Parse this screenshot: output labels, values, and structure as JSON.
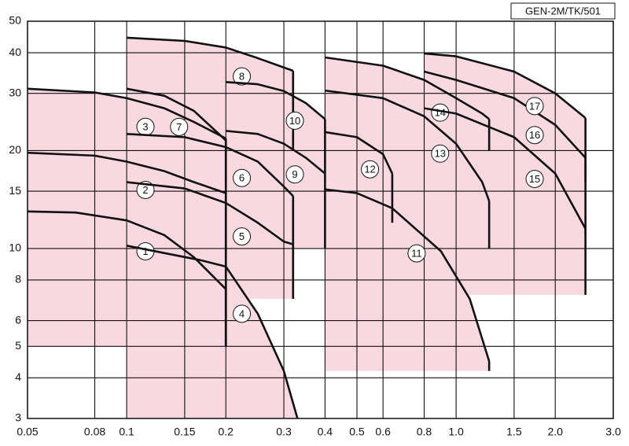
{
  "chart_data": {
    "type": "zones",
    "code": "GEN-2M/TK/501",
    "xlog": true,
    "ylog": true,
    "grid": true,
    "color": "#f8d9e1",
    "xlim": [
      0.05,
      3.0
    ],
    "ylim": [
      3,
      50
    ],
    "xticks": [
      0.05,
      0.08,
      0.1,
      0.15,
      0.2,
      0.3,
      0.4,
      0.5,
      0.6,
      0.8,
      {
        "value": 1.0,
        "label": "1.0"
      },
      1.5,
      {
        "value": 2.0,
        "label": "2.0"
      },
      {
        "value": 3.0,
        "label": "3.0"
      }
    ],
    "yticks": [
      3,
      4,
      5,
      6,
      8,
      10,
      15,
      20,
      30,
      40,
      50
    ],
    "series": [
      {
        "name": "1",
        "x": [
          0.05,
          0.07,
          0.1,
          0.13,
          0.16,
          0.2
        ],
        "values": [
          13,
          12.9,
          12.2,
          11,
          9.4,
          7.5
        ],
        "bottom": 5
      },
      {
        "name": "2",
        "x": [
          0.05,
          0.08,
          0.1,
          0.13,
          0.16,
          0.2
        ],
        "values": [
          19.7,
          19.3,
          18.5,
          17.3,
          16,
          14.8
        ],
        "bottom": 5
      },
      {
        "name": "3",
        "x": [
          0.05,
          0.08,
          0.1,
          0.13,
          0.16,
          0.2
        ],
        "values": [
          31,
          30.2,
          29,
          27,
          24.5,
          21.8
        ],
        "bottom": 5
      },
      {
        "name": "4",
        "x": [
          0.1,
          0.168,
          0.2,
          0.25,
          0.3,
          0.33
        ],
        "values": [
          10.2,
          9.2,
          8.8,
          6.3,
          4.2,
          3
        ],
        "bottom": 3
      },
      {
        "name": "5",
        "x": [
          0.1,
          0.15,
          0.2,
          0.25,
          0.3,
          0.32
        ],
        "values": [
          16,
          15.3,
          13.8,
          12,
          10.5,
          10.3
        ],
        "bottom": 7
      },
      {
        "name": "6",
        "x": [
          0.1,
          0.15,
          0.2,
          0.25,
          0.3,
          0.32
        ],
        "values": [
          22.5,
          22,
          20.5,
          18.5,
          15.5,
          14.5
        ],
        "bottom": 10
      },
      {
        "name": "7",
        "x": [
          0.1,
          0.13,
          0.16,
          0.2
        ],
        "values": [
          31,
          29.5,
          26.5,
          21.5
        ],
        "bottom": 16
      },
      {
        "name": "8",
        "x": [
          0.1,
          0.15,
          0.2,
          0.25,
          0.32
        ],
        "values": [
          44.5,
          43.5,
          41.5,
          38.5,
          35.2
        ],
        "bottom": 20
      },
      {
        "name": "9",
        "x": [
          0.2,
          0.25,
          0.3,
          0.35,
          0.4
        ],
        "values": [
          23,
          22.5,
          21,
          19,
          17
        ],
        "bottom": 10
      },
      {
        "name": "10",
        "x": [
          0.2,
          0.25,
          0.3,
          0.35,
          0.4
        ],
        "values": [
          32.5,
          32,
          30.5,
          28,
          25
        ],
        "bottom": 17
      },
      {
        "name": "11",
        "x": [
          0.4,
          0.5,
          0.64,
          0.9,
          1.1,
          1.26
        ],
        "values": [
          15.2,
          14.8,
          13.3,
          9.8,
          7,
          4.5
        ],
        "bottom": 4.2
      },
      {
        "name": "12",
        "x": [
          0.4,
          0.5,
          0.6,
          0.64
        ],
        "values": [
          22.8,
          22,
          19.5,
          17
        ],
        "bottom": 12
      },
      {
        "name": "13",
        "x": [
          0.4,
          0.6,
          0.8,
          1.0,
          1.2,
          1.26
        ],
        "values": [
          30.6,
          29,
          25.5,
          21,
          16,
          14
        ],
        "bottom": 10
      },
      {
        "name": "14",
        "x": [
          0.4,
          0.6,
          0.8,
          1.0,
          1.2,
          1.26
        ],
        "values": [
          38.7,
          36.5,
          33,
          29,
          26,
          25
        ],
        "bottom": 20
      },
      {
        "name": "15",
        "x": [
          0.8,
          1.0,
          1.5,
          2.0,
          2.47
        ],
        "values": [
          27,
          26,
          22,
          17,
          11.5
        ],
        "bottom": 7.2
      },
      {
        "name": "16",
        "x": [
          0.8,
          1.0,
          1.5,
          2.0,
          2.47
        ],
        "values": [
          35,
          33,
          29,
          24,
          19
        ],
        "bottom": 11
      },
      {
        "name": "17",
        "x": [
          0.8,
          1.0,
          1.5,
          2.0,
          2.47
        ],
        "values": [
          39.8,
          39,
          35,
          30,
          25.2
        ],
        "bottom": 16
      }
    ]
  }
}
